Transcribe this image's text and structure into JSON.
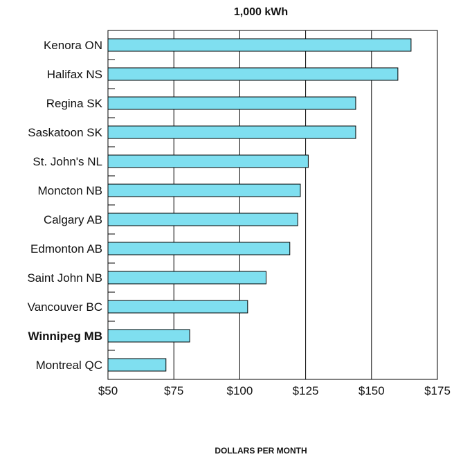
{
  "chart_data": {
    "type": "bar",
    "orientation": "horizontal",
    "title": "1,000 kWh",
    "xlabel": "DOLLARS PER MONTH",
    "ylabel": "",
    "categories": [
      "Kenora ON",
      "Halifax NS",
      "Regina SK",
      "Saskatoon SK",
      "St. John's NL",
      "Moncton NB",
      "Calgary AB",
      "Edmonton AB",
      "Saint John NB",
      "Vancouver BC",
      "Winnipeg MB",
      "Montreal QC"
    ],
    "values": [
      165,
      160,
      144,
      144,
      126,
      123,
      122,
      119,
      110,
      103,
      81,
      72
    ],
    "highlight_category": "Winnipeg MB",
    "xlim": [
      50,
      175
    ],
    "xticks": [
      50,
      75,
      100,
      125,
      150,
      175
    ],
    "xtick_labels": [
      "$50",
      "$75",
      "$100",
      "$125",
      "$150",
      "$175"
    ],
    "grid": "vertical",
    "bar_color": "#7fdff0",
    "bar_stroke": "#000000"
  }
}
